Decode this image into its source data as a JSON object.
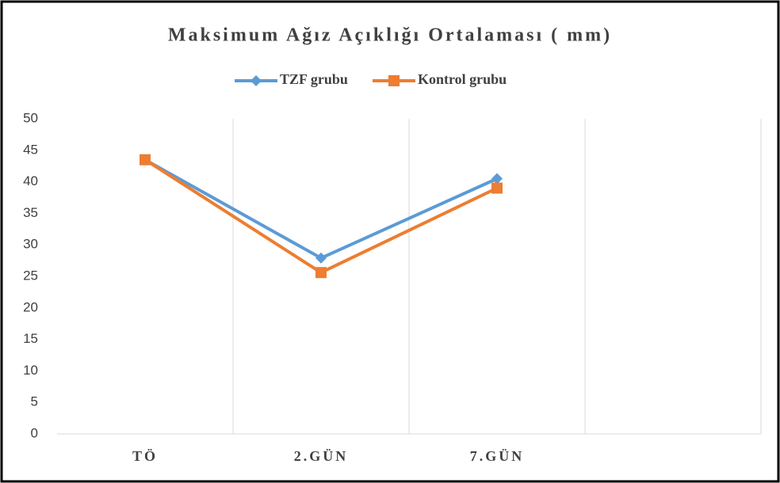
{
  "chart_data": {
    "type": "line",
    "title": "Maksimum Ağız Açıklığı Ortalaması ( mm)",
    "categories": [
      "TÖ",
      "2.GÜN",
      "7.GÜN",
      null
    ],
    "series": [
      {
        "name": "TZF grubu",
        "color": "#5b9bd5",
        "marker": "diamond",
        "values": [
          43.5,
          27.9,
          40.5,
          null
        ]
      },
      {
        "name": "Kontrol grubu",
        "color": "#ed7d31",
        "marker": "square",
        "values": [
          43.5,
          25.6,
          39,
          null
        ]
      }
    ],
    "ylim": [
      0,
      50
    ],
    "yticks": [
      0,
      5,
      10,
      15,
      20,
      25,
      30,
      35,
      40,
      45,
      50
    ],
    "legend": "top"
  }
}
